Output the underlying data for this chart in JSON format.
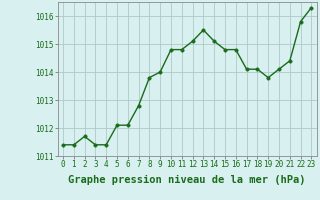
{
  "x": [
    0,
    1,
    2,
    3,
    4,
    5,
    6,
    7,
    8,
    9,
    10,
    11,
    12,
    13,
    14,
    15,
    16,
    17,
    18,
    19,
    20,
    21,
    22,
    23
  ],
  "y": [
    1011.4,
    1011.4,
    1011.7,
    1011.4,
    1011.4,
    1012.1,
    1012.1,
    1012.8,
    1013.8,
    1014.0,
    1014.8,
    1014.8,
    1015.1,
    1015.5,
    1015.1,
    1014.8,
    1014.8,
    1014.1,
    1014.1,
    1013.8,
    1014.1,
    1014.4,
    1015.8,
    1016.3
  ],
  "line_color": "#1a6b1a",
  "marker_color": "#1a6b1a",
  "bg_color": "#d8f0f0",
  "grid_color": "#b0c8c8",
  "xlabel": "Graphe pression niveau de la mer (hPa)",
  "xlabel_color": "#1a6b1a",
  "tick_color": "#1a6b1a",
  "ylim": [
    1011.0,
    1016.5
  ],
  "yticks": [
    1011,
    1012,
    1013,
    1014,
    1015,
    1016
  ],
  "xticks": [
    0,
    1,
    2,
    3,
    4,
    5,
    6,
    7,
    8,
    9,
    10,
    11,
    12,
    13,
    14,
    15,
    16,
    17,
    18,
    19,
    20,
    21,
    22,
    23
  ],
  "marker_size": 2.5,
  "line_width": 1.0,
  "font_size": 5.5,
  "xlabel_fontsize": 7.5
}
